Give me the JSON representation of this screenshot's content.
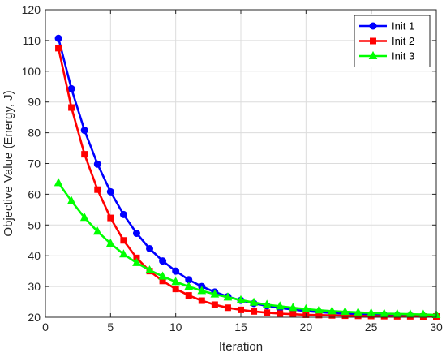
{
  "chart_data": {
    "type": "line",
    "title": "",
    "xlabel": "Iteration",
    "ylabel": "Objective Value (Energy, J)",
    "xlim": [
      0,
      30
    ],
    "ylim": [
      20,
      120
    ],
    "xticks": [
      0,
      5,
      10,
      15,
      20,
      25,
      30
    ],
    "yticks": [
      20,
      30,
      40,
      50,
      60,
      70,
      80,
      90,
      100,
      110,
      120
    ],
    "grid": true,
    "legend_position": "top-right",
    "x": [
      1,
      2,
      3,
      4,
      5,
      6,
      7,
      8,
      9,
      10,
      11,
      12,
      13,
      14,
      15,
      16,
      17,
      18,
      19,
      20,
      21,
      22,
      23,
      24,
      25,
      26,
      27,
      28,
      29,
      30
    ],
    "series": [
      {
        "name": "Init 1",
        "color": "#0000ff",
        "marker": "circle",
        "values": [
          110.7,
          94.3,
          80.8,
          69.8,
          60.8,
          53.4,
          47.3,
          42.3,
          38.3,
          35.0,
          32.2,
          30.0,
          28.2,
          26.7,
          25.5,
          24.5,
          23.7,
          23.0,
          22.5,
          22.0,
          21.7,
          21.4,
          21.2,
          21.0,
          20.8,
          20.7,
          20.6,
          20.5,
          20.4,
          20.35
        ]
      },
      {
        "name": "Init 2",
        "color": "#ff0000",
        "marker": "square",
        "values": [
          107.5,
          88.2,
          73.0,
          61.5,
          52.3,
          45.0,
          39.3,
          35.0,
          31.8,
          29.2,
          27.1,
          25.4,
          24.1,
          23.1,
          22.4,
          21.9,
          21.5,
          21.2,
          21.0,
          20.8,
          20.7,
          20.6,
          20.5,
          20.45,
          20.4,
          20.35,
          20.3,
          20.3,
          20.25,
          20.25
        ]
      },
      {
        "name": "Init 3",
        "color": "#00ff00",
        "marker": "triangle",
        "values": [
          63.7,
          57.8,
          52.4,
          47.9,
          44.0,
          40.5,
          37.7,
          35.3,
          33.3,
          31.5,
          30.0,
          28.6,
          27.5,
          26.5,
          25.6,
          24.8,
          24.1,
          23.6,
          23.1,
          22.7,
          22.3,
          22.0,
          21.8,
          21.6,
          21.4,
          21.2,
          21.1,
          21.0,
          20.9,
          20.8
        ]
      }
    ]
  }
}
